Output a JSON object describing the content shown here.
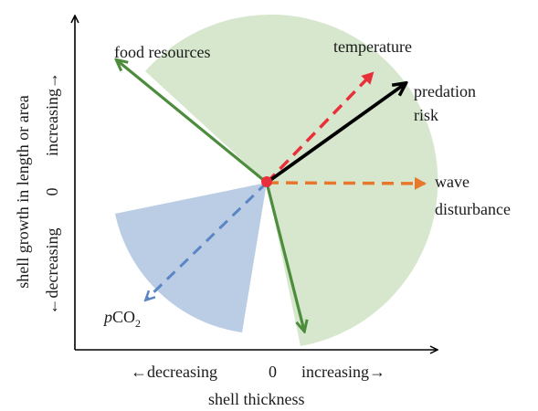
{
  "axes": {
    "x_title": "shell thickness",
    "x_decreasing": "←decreasing",
    "x_zero": "0",
    "x_increasing": "increasing→",
    "y_title": "shell growth in length or area",
    "y_decreasing": "←decreasing",
    "y_zero": "0",
    "y_increasing": "increasing→"
  },
  "factors": {
    "food_resources": "food resources",
    "temperature": "temperature",
    "predation_risk_line1": "predation",
    "predation_risk_line2": "risk",
    "wave_disturbance_line1": "wave",
    "wave_disturbance_line2": "disturbance",
    "pco2_prefix": "p",
    "pco2_main": "CO",
    "pco2_sub": "2"
  },
  "colors": {
    "green_sector": "#cfe3c4",
    "blue_sector": "#b4c6e2",
    "green_arrow": "#4c8c3c",
    "red_arrow": "#e8303a",
    "black_arrow": "#000000",
    "orange_arrow": "#e8772e",
    "blue_arrow": "#5b86c4",
    "origin_dot": "#e8303a"
  }
}
